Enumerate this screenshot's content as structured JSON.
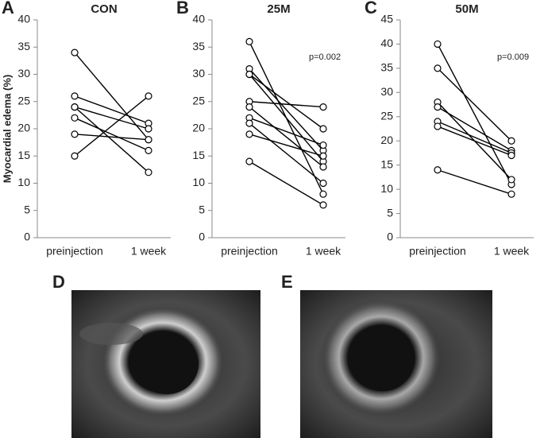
{
  "chart_data": [
    {
      "type": "line",
      "panel": "A",
      "title": "CON",
      "ylabel": "Myocardial edema (%)",
      "categories": [
        "preinjection",
        "1 week"
      ],
      "ylim": [
        0,
        40
      ],
      "yticks": [
        0,
        5,
        10,
        15,
        20,
        25,
        30,
        35,
        40
      ],
      "color": "#000000",
      "series": [
        {
          "values": [
            34,
            18
          ]
        },
        {
          "values": [
            26,
            21
          ]
        },
        {
          "values": [
            24,
            20
          ]
        },
        {
          "values": [
            24,
            12
          ]
        },
        {
          "values": [
            22,
            16
          ]
        },
        {
          "values": [
            19,
            18
          ]
        },
        {
          "values": [
            15,
            26
          ]
        }
      ]
    },
    {
      "type": "line",
      "panel": "B",
      "title": "25M",
      "annotation": "p=0.002",
      "categories": [
        "preinjection",
        "1 week"
      ],
      "ylim": [
        0,
        40
      ],
      "yticks": [
        0,
        5,
        10,
        15,
        20,
        25,
        30,
        35,
        40
      ],
      "color": "#000000",
      "series": [
        {
          "values": [
            36,
            8
          ]
        },
        {
          "values": [
            31,
            16
          ]
        },
        {
          "values": [
            30,
            20
          ]
        },
        {
          "values": [
            30,
            14
          ]
        },
        {
          "values": [
            25,
            24
          ]
        },
        {
          "values": [
            24,
            13
          ]
        },
        {
          "values": [
            22,
            17
          ]
        },
        {
          "values": [
            21,
            10
          ]
        },
        {
          "values": [
            19,
            15
          ]
        },
        {
          "values": [
            14,
            6
          ]
        }
      ]
    },
    {
      "type": "line",
      "panel": "C",
      "title": "50M",
      "annotation": "p=0.009",
      "categories": [
        "preinjection",
        "1 week"
      ],
      "ylim": [
        0,
        45
      ],
      "yticks": [
        0,
        5,
        10,
        15,
        20,
        25,
        30,
        35,
        40,
        45
      ],
      "color": "#000000",
      "series": [
        {
          "values": [
            40,
            11
          ]
        },
        {
          "values": [
            35,
            20
          ]
        },
        {
          "values": [
            28,
            12
          ]
        },
        {
          "values": [
            27,
            18
          ]
        },
        {
          "values": [
            24,
            17.5
          ]
        },
        {
          "values": [
            23,
            17
          ]
        },
        {
          "values": [
            14,
            9
          ]
        }
      ]
    }
  ],
  "images": [
    {
      "panel": "D"
    },
    {
      "panel": "E"
    }
  ]
}
